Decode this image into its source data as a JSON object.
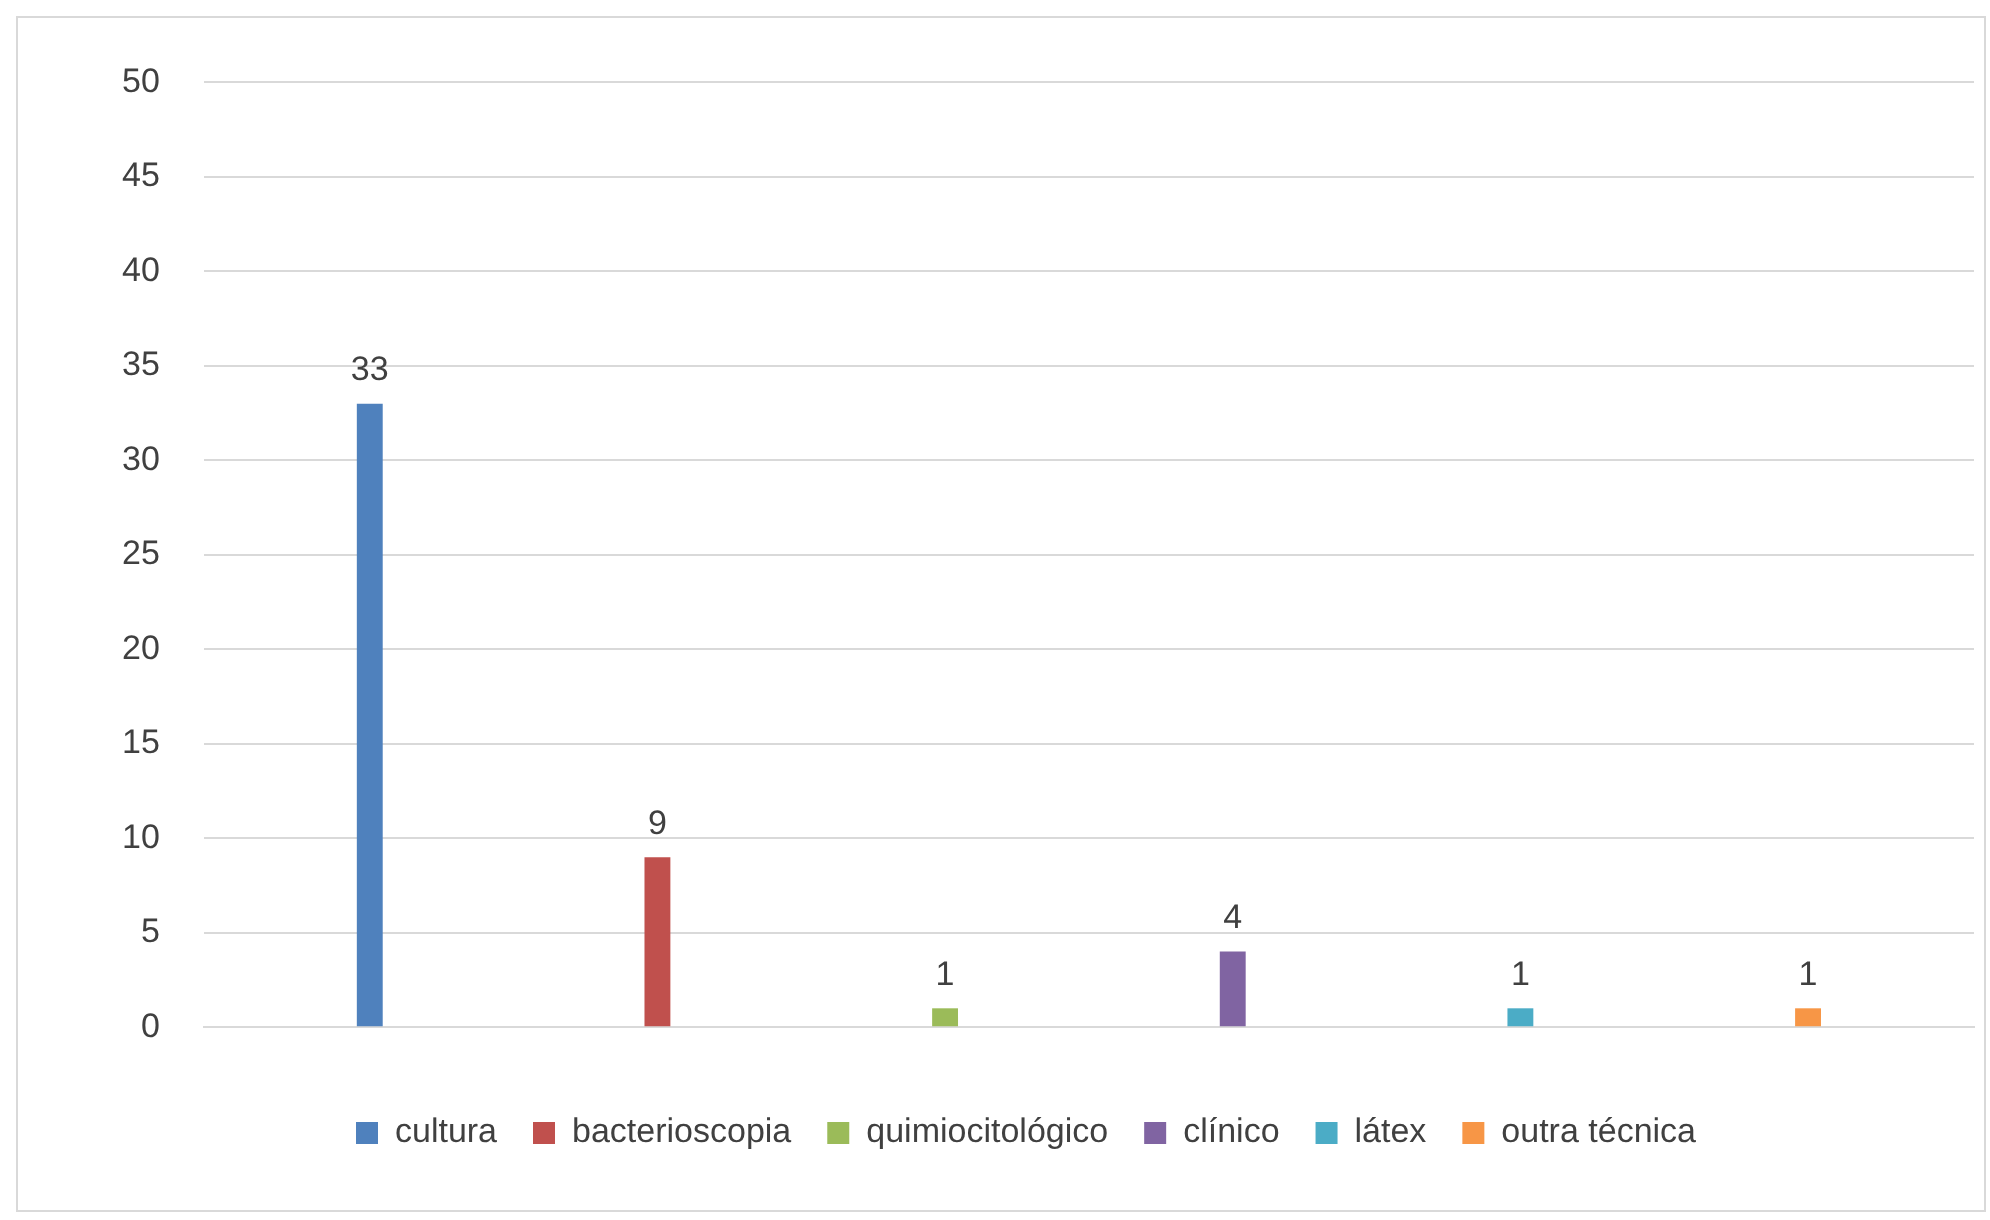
{
  "chart_data": {
    "type": "bar",
    "categories": [
      null
    ],
    "series": [
      {
        "name": "cultura",
        "color": "#4f81bd",
        "values": [
          33
        ]
      },
      {
        "name": "bacterioscopia",
        "color": "#c0504d",
        "values": [
          9
        ]
      },
      {
        "name": "quimiocitológico",
        "color": "#9bbb59",
        "values": [
          1
        ]
      },
      {
        "name": "clínico",
        "color": "#8064a2",
        "values": [
          4
        ]
      },
      {
        "name": "látex",
        "color": "#4bacc6",
        "values": [
          1
        ]
      },
      {
        "name": "outra técnica",
        "color": "#f79646",
        "values": [
          1
        ]
      }
    ],
    "ylim": [
      0,
      50
    ],
    "yticks": [
      0,
      5,
      10,
      15,
      20,
      25,
      30,
      35,
      40,
      45,
      50
    ],
    "grid": "y",
    "legend": "bottom",
    "data_labels": true
  }
}
